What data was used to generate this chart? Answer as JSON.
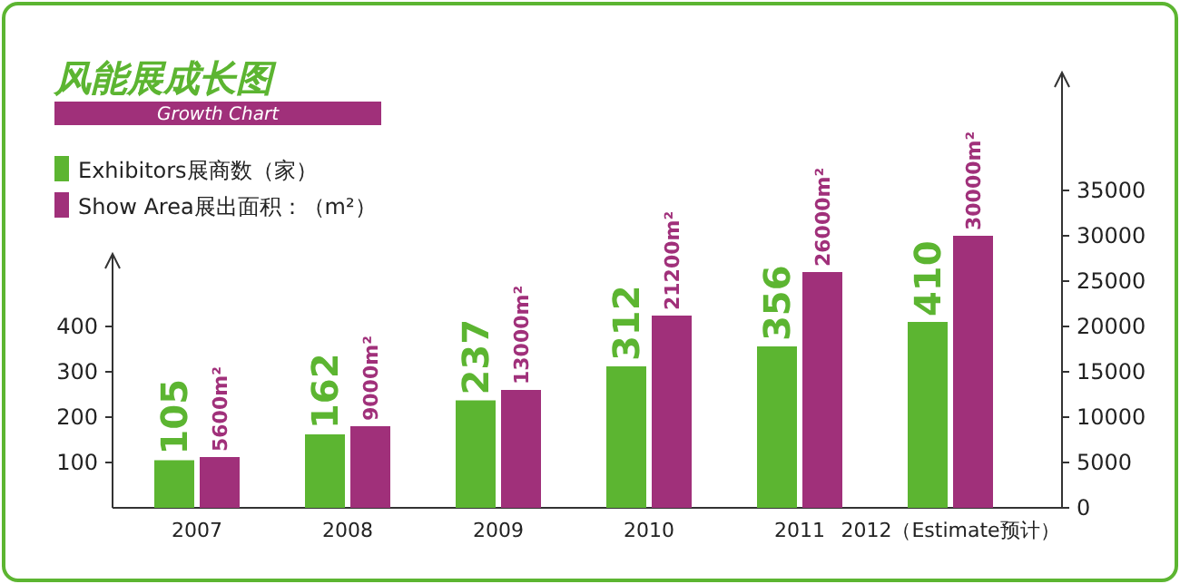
{
  "chart_data": {
    "type": "bar",
    "title": "风能展成长图",
    "subtitle": "Growth Chart",
    "categories": [
      "2007",
      "2008",
      "2009",
      "2010",
      "2011",
      "2012（Estimate预计）"
    ],
    "series": [
      {
        "name": "Exhibitors展商数（家）",
        "color": "#5cb531",
        "values": [
          105,
          162,
          237,
          312,
          356,
          410
        ],
        "value_labels": [
          "105",
          "162",
          "237",
          "312",
          "356",
          "410"
        ]
      },
      {
        "name": "Show Area展出面积：（m²）",
        "color": "#a0307a",
        "axis": "y2",
        "values": [
          5600,
          9000,
          13000,
          21200,
          26000,
          30000
        ],
        "value_labels": [
          "5600m²",
          "9000m²",
          "13000m²",
          "21200m²",
          "26000m²",
          "30000m²"
        ]
      }
    ],
    "ylim": [
      0,
      560
    ],
    "yticks": [
      100,
      200,
      300,
      400
    ],
    "y2lim": [
      0,
      48000
    ],
    "y2ticks": [
      0,
      5000,
      10000,
      15000,
      20000,
      25000,
      30000,
      35000
    ],
    "legend": "top left"
  }
}
